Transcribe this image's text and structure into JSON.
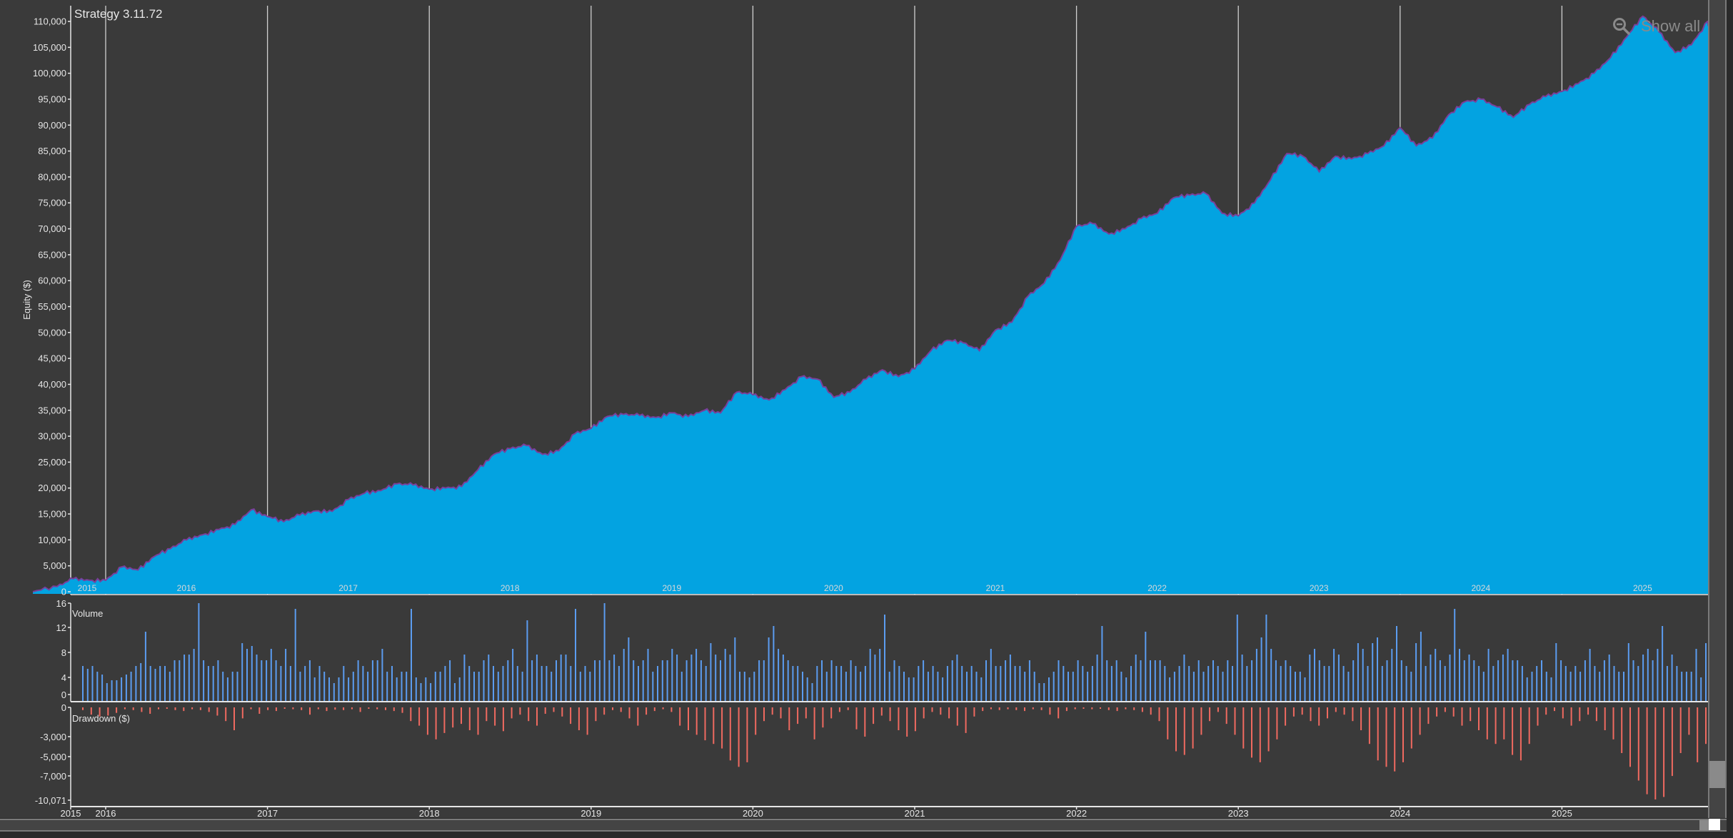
{
  "title": "Strategy 3.11.72",
  "toolbar": {
    "show_all_label": "Show all",
    "show_all_icon": "zoom-out-icon"
  },
  "colors": {
    "background": "#3a3a3a",
    "equity_fill": "#03a3e1",
    "equity_line": "#7a3f9a",
    "volume_bar": "#5b9cf0",
    "drawdown_bar": "#f06a60",
    "axis": "#e6e6e6",
    "gridline": "#cfcfcf"
  },
  "chart_data": [
    {
      "type": "area",
      "title": "Strategy 3.11.72",
      "ylabel": "Equity ($)",
      "xlabel": "",
      "ylim": [
        0,
        112000
      ],
      "yticks": [
        "0",
        "5,000",
        "10,000",
        "15,000",
        "20,000",
        "25,000",
        "30,000",
        "35,000",
        "40,000",
        "45,000",
        "50,000",
        "55,000",
        "60,000",
        "65,000",
        "70,000",
        "75,000",
        "80,000",
        "85,000",
        "90,000",
        "95,000",
        "100,000",
        "105,000",
        "110,000"
      ],
      "year_labels": [
        "2015",
        "2016",
        "2017",
        "2018",
        "2019",
        "2020",
        "2021",
        "2022",
        "2023",
        "2024",
        "2025"
      ],
      "x": [
        2015.55,
        2015.7,
        2015.8,
        2015.9,
        2016.0,
        2016.1,
        2016.2,
        2016.3,
        2016.4,
        2016.5,
        2016.6,
        2016.7,
        2016.8,
        2016.9,
        2017.0,
        2017.1,
        2017.2,
        2017.3,
        2017.4,
        2017.5,
        2017.6,
        2017.7,
        2017.8,
        2017.9,
        2018.0,
        2018.1,
        2018.2,
        2018.3,
        2018.4,
        2018.5,
        2018.6,
        2018.7,
        2018.8,
        2018.9,
        2019.0,
        2019.1,
        2019.2,
        2019.3,
        2019.4,
        2019.5,
        2019.6,
        2019.7,
        2019.8,
        2019.9,
        2020.0,
        2020.1,
        2020.2,
        2020.3,
        2020.4,
        2020.5,
        2020.6,
        2020.7,
        2020.8,
        2020.9,
        2021.0,
        2021.1,
        2021.2,
        2021.3,
        2021.4,
        2021.5,
        2021.6,
        2021.7,
        2021.8,
        2021.9,
        2022.0,
        2022.1,
        2022.2,
        2022.3,
        2022.4,
        2022.5,
        2022.6,
        2022.7,
        2022.8,
        2022.9,
        2023.0,
        2023.1,
        2023.2,
        2023.3,
        2023.4,
        2023.5,
        2023.6,
        2023.7,
        2023.8,
        2023.9,
        2024.0,
        2024.1,
        2024.2,
        2024.3,
        2024.4,
        2024.5,
        2024.6,
        2024.7,
        2024.8,
        2024.9,
        2025.0,
        2025.1,
        2025.2,
        2025.3,
        2025.4,
        2025.5,
        2025.6,
        2025.7,
        2025.8,
        2025.9,
        2025.93
      ],
      "series": [
        {
          "name": "Equity",
          "values": [
            0,
            1000,
            2500,
            2200,
            2200,
            4800,
            4200,
            6800,
            8300,
            10000,
            11000,
            12000,
            13000,
            15800,
            14500,
            13500,
            14800,
            15600,
            15500,
            17800,
            19000,
            19500,
            20800,
            20600,
            19800,
            20000,
            20300,
            23500,
            26500,
            27600,
            28200,
            26500,
            27200,
            30500,
            31500,
            33800,
            34200,
            34000,
            33600,
            34500,
            33800,
            35000,
            34500,
            38500,
            38000,
            37000,
            39000,
            41500,
            41000,
            37500,
            38500,
            41000,
            42800,
            41500,
            43000,
            46500,
            48500,
            48000,
            46500,
            50500,
            52000,
            57000,
            59500,
            64000,
            70500,
            71000,
            69000,
            70000,
            72000,
            73000,
            76000,
            76500,
            76800,
            73000,
            72500,
            75000,
            79500,
            84500,
            84000,
            81000,
            84000,
            83500,
            84500,
            86000,
            89500,
            86000,
            87500,
            92000,
            94500,
            95000,
            93500,
            91500,
            94000,
            95500,
            96500,
            98000,
            100000,
            103000,
            107000,
            111000,
            108000,
            104000,
            105500,
            110000,
            108500
          ]
        }
      ]
    },
    {
      "type": "bar",
      "title": "Volume",
      "ylim": [
        0,
        16
      ],
      "yticks": [
        "0",
        "4",
        "8",
        "12",
        "16"
      ],
      "series": [
        {
          "name": "Volume",
          "values": [
            5,
            4.5,
            5,
            4,
            3.5,
            2,
            2.5,
            2.5,
            3,
            3.5,
            4,
            5,
            5.5,
            11,
            5,
            4.5,
            5,
            5,
            4,
            6,
            6,
            7,
            7,
            8,
            16,
            6,
            5,
            5,
            6,
            4,
            3,
            4,
            4,
            9,
            8,
            8.5,
            7,
            6,
            6,
            8,
            6,
            5,
            8,
            5,
            15,
            4,
            5,
            6,
            3,
            5,
            4,
            3,
            2,
            3,
            5,
            3,
            4,
            6,
            5,
            4,
            6,
            6,
            8,
            4,
            5,
            3,
            4,
            4,
            15,
            3,
            2,
            3,
            2,
            4,
            4,
            5,
            6,
            2,
            3,
            7,
            5,
            4,
            4,
            6,
            7,
            5,
            4,
            5,
            6,
            8,
            5,
            4,
            13,
            6,
            7,
            5,
            5,
            4,
            6,
            7,
            7,
            5,
            15,
            4,
            5,
            4,
            6,
            6,
            16,
            6,
            7,
            5,
            8,
            10,
            6,
            5,
            6,
            8,
            4,
            5,
            6,
            6,
            8,
            7,
            4,
            6,
            7,
            8,
            6,
            5,
            9,
            7,
            6,
            8,
            7,
            10,
            4,
            4,
            3,
            4,
            6,
            6,
            10,
            12,
            8,
            7,
            6,
            5,
            5,
            4,
            3,
            2,
            5,
            6,
            4,
            6,
            5,
            5,
            4,
            6,
            5,
            4,
            5,
            8,
            7,
            8,
            14,
            4,
            6,
            5,
            4,
            3,
            3,
            5,
            6,
            4,
            5,
            4,
            3,
            5,
            6,
            7,
            5,
            4,
            5,
            4,
            3,
            6,
            8,
            5,
            5,
            6,
            7,
            5,
            5,
            4,
            6,
            4,
            2,
            2,
            3,
            4,
            6,
            5,
            4,
            4,
            6,
            5,
            4,
            5,
            7,
            12,
            6,
            5,
            6,
            4,
            3,
            5,
            7,
            6,
            11,
            6,
            6,
            6,
            5,
            3,
            4,
            5,
            7,
            5,
            4,
            6,
            4,
            5,
            6,
            5,
            4,
            6,
            5,
            14,
            7,
            5,
            6,
            8,
            10,
            14,
            8,
            6,
            5,
            6,
            5,
            4,
            4,
            3,
            7,
            8,
            6,
            5,
            5,
            8,
            7,
            5,
            4,
            6,
            9,
            8,
            5,
            9,
            10,
            5,
            6,
            8,
            12,
            6,
            5,
            4,
            9,
            11,
            5,
            7,
            8,
            6,
            5,
            7,
            15,
            8,
            6,
            7,
            6,
            5,
            4,
            8,
            5,
            6,
            7,
            8,
            6,
            6,
            5,
            3,
            4,
            5,
            6,
            4,
            3,
            9,
            6,
            5,
            4,
            5,
            4,
            6,
            8,
            5,
            4,
            6,
            7,
            5,
            4,
            4,
            9,
            6,
            5,
            7,
            8,
            6,
            8,
            12,
            5,
            7,
            5,
            4,
            4,
            4,
            8,
            3,
            9
          ]
        }
      ]
    },
    {
      "type": "bar",
      "title": "Drawdown ($)",
      "ylim": [
        -10071,
        0
      ],
      "yticks": [
        "0",
        "-3,000",
        "-5,000",
        "-7,000",
        "-10,071"
      ],
      "series": [
        {
          "name": "Drawdown",
          "values": [
            -300,
            -800,
            -1000,
            -900,
            -600,
            -200,
            -300,
            -500,
            -700,
            -200,
            -150,
            -300,
            -400,
            -200,
            -300,
            -500,
            -900,
            -1500,
            -2500,
            -1200,
            -200,
            -700,
            -300,
            -400,
            -100,
            -200,
            -300,
            -800,
            -200,
            -400,
            -250,
            -300,
            -200,
            -500,
            -100,
            -200,
            -300,
            -400,
            -600,
            -1500,
            -2000,
            -3000,
            -3500,
            -2800,
            -2200,
            -1800,
            -2500,
            -3000,
            -1500,
            -2000,
            -2600,
            -1200,
            -800,
            -1500,
            -2000,
            -700,
            -500,
            -1000,
            -1800,
            -2500,
            -3000,
            -1500,
            -800,
            -300,
            -500,
            -1200,
            -2000,
            -800,
            -400,
            -200,
            -500,
            -2000,
            -2500,
            -3000,
            -3600,
            -4000,
            -4500,
            -5800,
            -6500,
            -6000,
            -3000,
            -1500,
            -800,
            -1200,
            -2500,
            -1800,
            -1200,
            -3500,
            -2200,
            -1200,
            -500,
            -300,
            -2400,
            -3200,
            -1800,
            -900,
            -1500,
            -2500,
            -3200,
            -2600,
            -1200,
            -500,
            -800,
            -1200,
            -2000,
            -2800,
            -1000,
            -400,
            -200,
            -300,
            -200,
            -300,
            -400,
            -200,
            -300,
            -800,
            -1200,
            -400,
            -200,
            -150,
            -200,
            -150,
            -300,
            -400,
            -200,
            -300,
            -500,
            -800,
            -1500,
            -3500,
            -4800,
            -5200,
            -4500,
            -3000,
            -1500,
            -500,
            -1800,
            -3000,
            -4500,
            -5500,
            -6000,
            -4800,
            -3500,
            -2000,
            -1000,
            -800,
            -1500,
            -2000,
            -1200,
            -500,
            -800,
            -1500,
            -2500,
            -4000,
            -5800,
            -6500,
            -7000,
            -6000,
            -4500,
            -3000,
            -1800,
            -1000,
            -500,
            -1000,
            -2000,
            -1500,
            -2500,
            -3500,
            -4000,
            -3500,
            -5200,
            -5800,
            -4000,
            -2000,
            -800,
            -400,
            -1200,
            -2000,
            -1500,
            -800,
            -1500,
            -2500,
            -3500,
            -5000,
            -6500,
            -8000,
            -9500,
            -10071,
            -9800,
            -7500,
            -5000,
            -3000,
            -6000,
            -4000
          ]
        }
      ]
    }
  ]
}
